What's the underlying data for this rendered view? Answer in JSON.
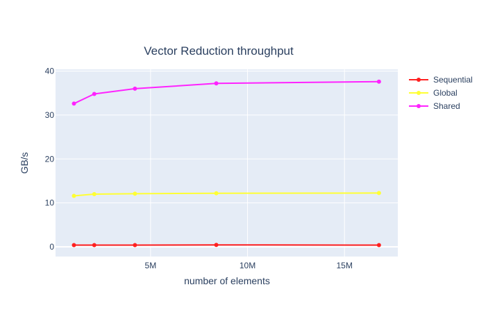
{
  "chart_data": {
    "type": "line",
    "title": "Vector Reduction throughput",
    "xlabel": "number of elements",
    "ylabel": "GB/s",
    "xlim": [
      100000,
      17750000
    ],
    "ylim": [
      -2.2,
      40.4
    ],
    "x_ticks": [
      {
        "value": 5000000,
        "label": "5M"
      },
      {
        "value": 10000000,
        "label": "10M"
      },
      {
        "value": 15000000,
        "label": "15M"
      }
    ],
    "y_ticks": [
      {
        "value": 0,
        "label": "0"
      },
      {
        "value": 10,
        "label": "10"
      },
      {
        "value": 20,
        "label": "20"
      },
      {
        "value": 30,
        "label": "30"
      },
      {
        "value": 40,
        "label": "40"
      }
    ],
    "x": [
      1048576,
      2097152,
      4194304,
      8388608,
      16777216
    ],
    "series": [
      {
        "name": "Sequential",
        "color": "#ff2020",
        "values": [
          0.4,
          0.4,
          0.4,
          0.45,
          0.4
        ]
      },
      {
        "name": "Global",
        "color": "#ffff33",
        "values": [
          11.6,
          12.0,
          12.1,
          12.2,
          12.25
        ]
      },
      {
        "name": "Shared",
        "color": "#ff22ff",
        "values": [
          32.6,
          34.8,
          36.0,
          37.2,
          37.6
        ]
      }
    ],
    "grid": true,
    "legend": "top-right",
    "plot_bg": "#e5ecf6"
  }
}
